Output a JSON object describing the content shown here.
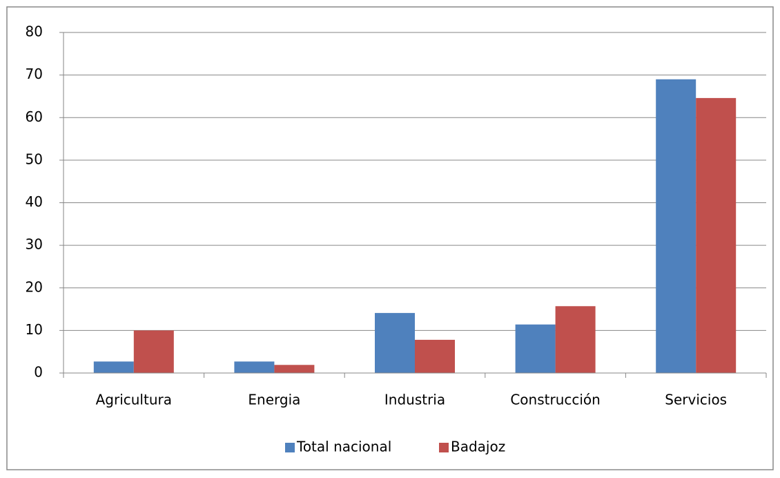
{
  "chart_data": {
    "type": "bar",
    "categories": [
      "Agricultura",
      "Energia",
      "Industria",
      "Construcción",
      "Servicios"
    ],
    "series": [
      {
        "name": "Total nacional",
        "color": "#4f81bd",
        "values": [
          2.7,
          2.7,
          14.1,
          11.4,
          69
        ]
      },
      {
        "name": "Badajoz",
        "color": "#c0504d",
        "values": [
          10,
          1.9,
          7.8,
          15.7,
          64.6
        ]
      }
    ],
    "ylim": [
      0,
      80
    ],
    "yticks": [
      0,
      10,
      20,
      30,
      40,
      50,
      60,
      70,
      80
    ],
    "grid": true,
    "legend": "bottom"
  }
}
